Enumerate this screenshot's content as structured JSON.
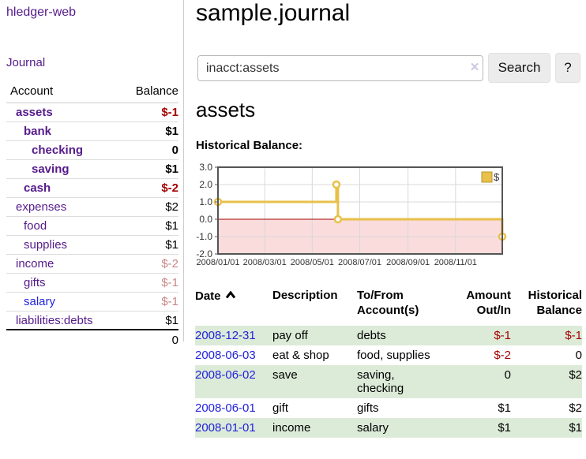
{
  "app": {
    "brand": "hledger-web",
    "nav_journal": "Journal"
  },
  "colors": {
    "link_purple": "#551a8b",
    "link_blue": "#2222dd",
    "negative_strong": "#a40000",
    "negative_soft": "#c98585",
    "row_green": "#dcebd8",
    "chart_gold": "#e8c04a",
    "chart_negative_region": "#fadcdc",
    "chart_zero_line": "#a40000"
  },
  "sidebar": {
    "columns": {
      "account": "Account",
      "balance": "Balance"
    },
    "accounts": [
      {
        "name": "assets",
        "balance": "$-1"
      },
      {
        "name": "bank",
        "balance": "$1"
      },
      {
        "name": "checking",
        "balance": "0"
      },
      {
        "name": "saving",
        "balance": "$1"
      },
      {
        "name": "cash",
        "balance": "$-2"
      },
      {
        "name": "expenses",
        "balance": "$2"
      },
      {
        "name": "food",
        "balance": "$1"
      },
      {
        "name": "supplies",
        "balance": "$1"
      },
      {
        "name": "income",
        "balance": "$-2"
      },
      {
        "name": "gifts",
        "balance": "$-1"
      },
      {
        "name": "salary",
        "balance": "$-1"
      },
      {
        "name": "liabilities:debts",
        "balance": "$1"
      }
    ],
    "total": "0"
  },
  "header": {
    "title": "sample.journal"
  },
  "search": {
    "value": "inacct:assets",
    "clear_icon": "×",
    "button_label": "Search",
    "help_label": "?"
  },
  "main": {
    "heading": "assets",
    "chart_label": "Historical Balance:"
  },
  "chart_data": {
    "type": "line",
    "step": true,
    "title": "Historical Balance:",
    "legend": "$",
    "legend_position": "top-right",
    "xdomain": [
      "2008-01-01",
      "2008-12-31"
    ],
    "ylim": [
      -2,
      3
    ],
    "yticks": [
      "3.0",
      "2.0",
      "1.0",
      "0.0",
      "-1.0",
      "-2.0"
    ],
    "ytick_values": [
      3,
      2,
      1,
      0,
      -1,
      -2
    ],
    "xticks": [
      "2008/01/01",
      "2008/03/01",
      "2008/05/01",
      "2008/07/01",
      "2008/09/01",
      "2008/11/01"
    ],
    "xtick_dates": [
      "2008-01-01",
      "2008-03-01",
      "2008-05-01",
      "2008-07-01",
      "2008-09-01",
      "2008-11-01"
    ],
    "grid": true,
    "negative_region_shaded": true,
    "series": [
      {
        "name": "$",
        "points": [
          {
            "date": "2008-01-01",
            "value": 1
          },
          {
            "date": "2008-06-01",
            "value": 2
          },
          {
            "date": "2008-06-03",
            "value": 0
          },
          {
            "date": "2008-12-31",
            "value": -1
          }
        ]
      }
    ]
  },
  "table": {
    "headers": {
      "date": "Date",
      "description": "Description",
      "accounts": "To/From Account(s)",
      "amount": "Amount Out/In",
      "balance": "Historical Balance"
    },
    "rows": [
      {
        "date": "2008-12-31",
        "description": "pay off",
        "accounts": "debts",
        "amount": "$-1",
        "balance": "$-1"
      },
      {
        "date": "2008-06-03",
        "description": "eat & shop",
        "accounts": "food, supplies",
        "amount": "$-2",
        "balance": "0"
      },
      {
        "date": "2008-06-02",
        "description": "save",
        "accounts": "saving, checking",
        "amount": "0",
        "balance": "$2"
      },
      {
        "date": "2008-06-01",
        "description": "gift",
        "accounts": "gifts",
        "amount": "$1",
        "balance": "$2"
      },
      {
        "date": "2008-01-01",
        "description": "income",
        "accounts": "salary",
        "amount": "$1",
        "balance": "$1"
      }
    ]
  }
}
